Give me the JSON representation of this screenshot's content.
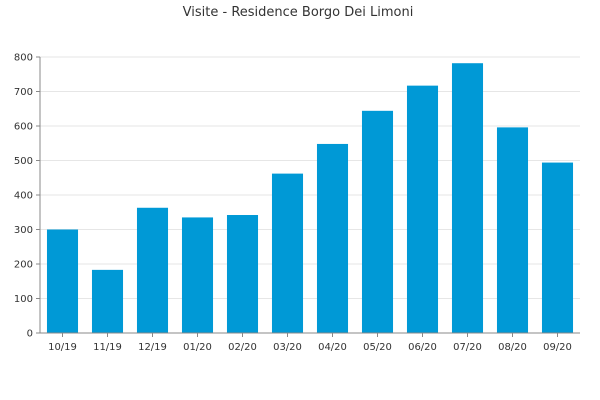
{
  "chart_data": {
    "type": "bar",
    "title": "Visite - Residence Borgo Dei Limoni",
    "xlabel": "",
    "ylabel": "",
    "categories": [
      "10/19",
      "11/19",
      "12/19",
      "01/20",
      "02/20",
      "03/20",
      "04/20",
      "05/20",
      "06/20",
      "07/20",
      "08/20",
      "09/20"
    ],
    "values": [
      300,
      183,
      363,
      335,
      342,
      462,
      548,
      644,
      717,
      782,
      596,
      494
    ],
    "ylim": [
      0,
      800
    ],
    "yticks": [
      0,
      100,
      200,
      300,
      400,
      500,
      600,
      700,
      800
    ],
    "grid": true,
    "bar_color": "#0099d6"
  }
}
